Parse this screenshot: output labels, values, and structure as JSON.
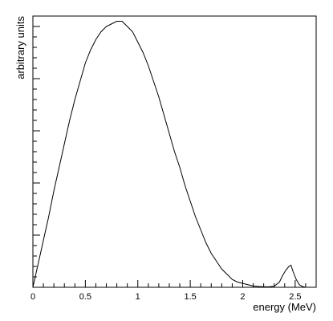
{
  "chart_data": {
    "type": "line",
    "title": "",
    "xlabel": "energy (MeV)",
    "ylabel": "arbitrary units",
    "xlim": [
      0,
      2.7
    ],
    "ylim": [
      0,
      1.04
    ],
    "grid": false,
    "legend": "none",
    "x_ticks": [
      0,
      0.5,
      1,
      1.5,
      2,
      2.5
    ],
    "x_tick_labels": [
      "0",
      "0.5",
      "1",
      "1.5",
      "2",
      "2.5"
    ],
    "series": [
      {
        "x": [
          0.0,
          0.05,
          0.1,
          0.15,
          0.2,
          0.25,
          0.3,
          0.35,
          0.4,
          0.45,
          0.5,
          0.55,
          0.6,
          0.65,
          0.7,
          0.75,
          0.8,
          0.85,
          0.9,
          0.95,
          1.0,
          1.05,
          1.1,
          1.15,
          1.2,
          1.25,
          1.3,
          1.35,
          1.4,
          1.45,
          1.5,
          1.55,
          1.6,
          1.65,
          1.7,
          1.75,
          1.8,
          1.85,
          1.9,
          1.95,
          2.0,
          2.05,
          2.1,
          2.15,
          2.2,
          2.25,
          2.3,
          2.35,
          2.38,
          2.41,
          2.44,
          2.46,
          2.48,
          2.51,
          2.54,
          2.57,
          2.6
        ],
        "y": [
          0.0,
          0.09,
          0.18,
          0.27,
          0.37,
          0.46,
          0.55,
          0.64,
          0.72,
          0.79,
          0.86,
          0.91,
          0.95,
          0.98,
          1.0,
          1.01,
          1.02,
          1.02,
          1.0,
          0.98,
          0.94,
          0.9,
          0.85,
          0.79,
          0.73,
          0.66,
          0.59,
          0.52,
          0.46,
          0.39,
          0.33,
          0.27,
          0.22,
          0.17,
          0.13,
          0.1,
          0.07,
          0.05,
          0.03,
          0.02,
          0.015,
          0.01,
          0.005,
          0.003,
          0.002,
          0.002,
          0.004,
          0.02,
          0.045,
          0.065,
          0.08,
          0.085,
          0.06,
          0.03,
          0.01,
          0.003,
          0.0
        ]
      }
    ]
  }
}
